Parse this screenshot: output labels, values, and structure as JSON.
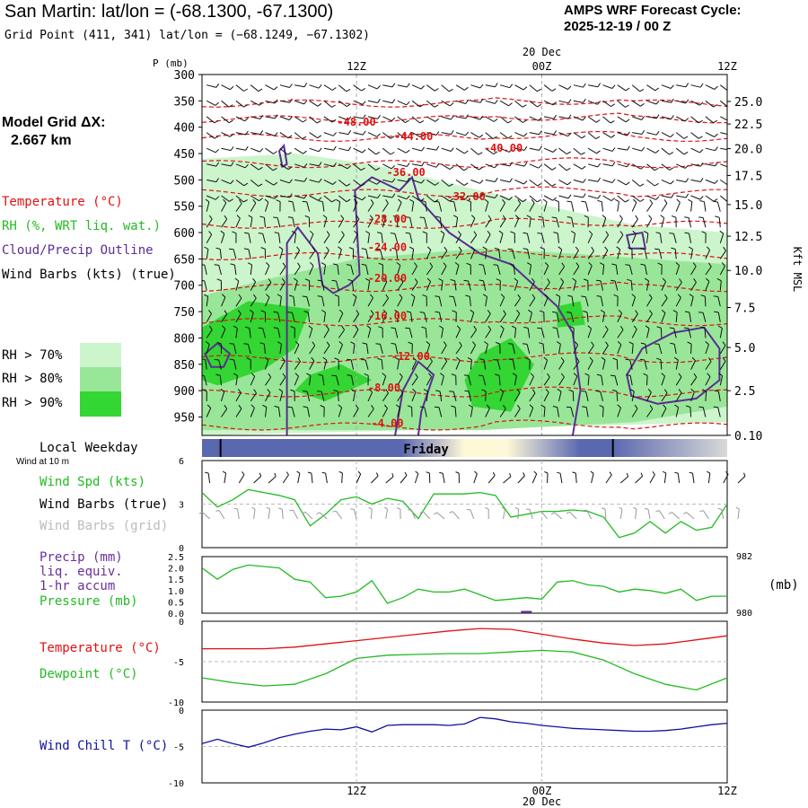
{
  "header": {
    "title": "San Martin:  lat/lon = (-68.1300, -67.1300)",
    "subtitle": "Grid Point (411, 341) lat/lon = (−68.1249, −67.1302)",
    "forecast_line1": "AMPS WRF Forecast Cycle:",
    "forecast_line2": "2025-12-19 / 00  Z"
  },
  "left_panel": {
    "model_grid_label": "Model Grid ΔX:",
    "model_grid_value": "2.667 km",
    "temperature_label": "Temperature (°C)",
    "rh_label": "RH (%, WRT liq. wat.)",
    "cloud_label": "Cloud/Precip Outline",
    "wind_barbs_label": "Wind Barbs (kts) (true)",
    "rh_legend": [
      {
        "label": "RH > 70%",
        "color": "#ccf5cc"
      },
      {
        "label": "RH > 80%",
        "color": "#99e699"
      },
      {
        "label": "RH > 90%",
        "color": "#33d633"
      }
    ],
    "local_weekday": "Local Weekday",
    "wind_at_10m": "Wind at 10 m",
    "wind_spd_label": "Wind Spd (kts)",
    "wind_barbs_true": "Wind Barbs (true)",
    "wind_barbs_grid": "Wind Barbs (grid)",
    "precip_label": "Precip (mm)",
    "liq_equiv": "liq. equiv.",
    "hr_accum": "1-hr accum",
    "pressure_label": "Pressure (mb)",
    "temp_label2": "Temperature (°C)",
    "dewpoint_label": "Dewpoint (°C)",
    "wind_chill_label": "Wind Chill T (°C)"
  },
  "colors": {
    "temperature": "#e01010",
    "rh70": "#ccf5cc",
    "rh80": "#99e699",
    "rh90": "#33d633",
    "cloud": "#5a2d91",
    "wind_spd": "#22bb22",
    "barb_grid": "#999999",
    "wind_chill": "#1010a0"
  },
  "chart_data": [
    {
      "type": "heatmap",
      "name": "cross_section",
      "y_axis_title": "P (mb)",
      "pressure_ticks": [
        300,
        350,
        400,
        450,
        500,
        550,
        600,
        650,
        700,
        750,
        800,
        850,
        900,
        950
      ],
      "ylim": [
        300,
        985
      ],
      "kft_ticks": [
        25.0,
        22.5,
        20.0,
        17.5,
        15.0,
        12.5,
        10.0,
        7.5,
        5.0,
        2.5,
        0.1
      ],
      "kft_tick_labels": [
        "25.0",
        "22.5",
        "20.0",
        "17.5",
        "15.0",
        "12.5",
        "10.0",
        "7.5",
        "5.0",
        "2.5",
        "0.10"
      ],
      "kft_axis_title": "Kft MSL",
      "top_date": "20 Dec",
      "x_tick_labels": [
        "12Z",
        "00Z",
        "12Z"
      ],
      "x_tick_hours": [
        12,
        24,
        36
      ],
      "xlim": [
        2,
        36
      ],
      "temperature_isotherms": [
        {
          "label": "-48.00",
          "values": [
            -48
          ],
          "label_hour": 12.0,
          "label_p": 390
        },
        {
          "label": "-44.00",
          "label_hour": 15.7,
          "label_p": 418
        },
        {
          "label": "-40.00",
          "label_hour": 21.5,
          "label_p": 440
        },
        {
          "label": "-36.00",
          "label_hour": 15.2,
          "label_p": 486
        },
        {
          "label": "-32.00",
          "label_hour": 19.1,
          "label_p": 532
        },
        {
          "label": "-28.00",
          "label_hour": 14.0,
          "label_p": 574
        },
        {
          "label": "-24.00",
          "label_hour": 14.0,
          "label_p": 628
        },
        {
          "label": "-20.00",
          "label_hour": 14.0,
          "label_p": 687
        },
        {
          "label": "-16.00",
          "label_hour": 14.0,
          "label_p": 758
        },
        {
          "label": "-12.00",
          "label_hour": 15.5,
          "label_p": 835
        },
        {
          "label": "-8.00",
          "label_hour": 13.8,
          "label_p": 895
        },
        {
          "label": "-4.00",
          "label_hour": 14.0,
          "label_p": 962
        }
      ],
      "isotherm_pressures": [
        355,
        385,
        420,
        470,
        525,
        585,
        645,
        705,
        770,
        840,
        905,
        968
      ],
      "rh70_region": [
        [
          2,
          460
        ],
        [
          8,
          450
        ],
        [
          13,
          470
        ],
        [
          20,
          520
        ],
        [
          26,
          560
        ],
        [
          30,
          585
        ],
        [
          36,
          600
        ],
        [
          36,
          960
        ],
        [
          2,
          985
        ]
      ],
      "rh80_region": [
        [
          2,
          720
        ],
        [
          6,
          690
        ],
        [
          12,
          650
        ],
        [
          20,
          630
        ],
        [
          26,
          640
        ],
        [
          36,
          660
        ],
        [
          36,
          930
        ],
        [
          30,
          960
        ],
        [
          20,
          975
        ],
        [
          2,
          975
        ]
      ],
      "rh90_regions": [
        [
          [
            2,
            780
          ],
          [
            5,
            730
          ],
          [
            9,
            745
          ],
          [
            8,
            820
          ],
          [
            6,
            860
          ],
          [
            3,
            890
          ],
          [
            2,
            880
          ]
        ],
        [
          [
            9,
            870
          ],
          [
            11,
            850
          ],
          [
            13,
            880
          ],
          [
            10,
            920
          ],
          [
            8,
            900
          ]
        ],
        [
          [
            20,
            830
          ],
          [
            22,
            800
          ],
          [
            23.5,
            850
          ],
          [
            22,
            940
          ],
          [
            19.5,
            930
          ],
          [
            19,
            880
          ]
        ],
        [
          [
            25,
            740
          ],
          [
            26.5,
            730
          ],
          [
            26.8,
            775
          ],
          [
            25,
            780
          ]
        ]
      ],
      "cloud_outlines": [
        [
          [
            7.5,
            985
          ],
          [
            7.5,
            620
          ],
          [
            8.2,
            590
          ],
          [
            9.5,
            640
          ],
          [
            9.8,
            700
          ],
          [
            10.5,
            715
          ],
          [
            11.5,
            700
          ],
          [
            12.2,
            680
          ],
          [
            11.9,
            520
          ],
          [
            13.0,
            495
          ],
          [
            14.8,
            520
          ],
          [
            15.6,
            495
          ],
          [
            16.0,
            535
          ],
          [
            18.0,
            600
          ],
          [
            20.0,
            640
          ],
          [
            22.0,
            660
          ],
          [
            23.5,
            700
          ],
          [
            25.0,
            740
          ],
          [
            26.0,
            790
          ],
          [
            26.5,
            900
          ],
          [
            26.0,
            985
          ]
        ],
        [
          [
            14.5,
            985
          ],
          [
            15.0,
            900
          ],
          [
            16.0,
            845
          ],
          [
            17.0,
            870
          ],
          [
            16.2,
            940
          ],
          [
            16.0,
            985
          ]
        ],
        [
          [
            29.5,
            870
          ],
          [
            30.5,
            820
          ],
          [
            32.5,
            790
          ],
          [
            34.5,
            780
          ],
          [
            35.5,
            820
          ],
          [
            35.5,
            880
          ],
          [
            34.0,
            915
          ],
          [
            31.5,
            925
          ],
          [
            29.8,
            910
          ]
        ],
        [
          [
            2.2,
            830
          ],
          [
            3.0,
            810
          ],
          [
            3.8,
            830
          ],
          [
            3.4,
            855
          ],
          [
            2.6,
            855
          ]
        ],
        [
          [
            7.0,
            445
          ],
          [
            7.3,
            435
          ],
          [
            7.5,
            470
          ],
          [
            7.2,
            475
          ]
        ],
        [
          [
            29.5,
            605
          ],
          [
            30.5,
            600
          ],
          [
            30.7,
            630
          ],
          [
            29.7,
            630
          ]
        ]
      ],
      "wind_barb_rows_mb": [
        320,
        350,
        380,
        410,
        440,
        470,
        500,
        530,
        560,
        590,
        620,
        650,
        680,
        710,
        740,
        770,
        800,
        830,
        860,
        890,
        920,
        950
      ]
    },
    {
      "type": "bar",
      "name": "weekday_bar",
      "label": "Friday",
      "night_color": "#5a68b0",
      "day_color": "#fff8d8",
      "dividers_hour": [
        3.2,
        28.6
      ]
    },
    {
      "type": "line",
      "name": "wind_speed",
      "ylim": [
        0,
        6
      ],
      "ytick_labels": [
        "0",
        "3",
        "6"
      ],
      "x": [
        2,
        3,
        4,
        5,
        6,
        7,
        8,
        9,
        10,
        11,
        12,
        13,
        14,
        15,
        16,
        17,
        18,
        19,
        20,
        21,
        22,
        23,
        24,
        25,
        26,
        27,
        28,
        29,
        30,
        31,
        32,
        33,
        34,
        35,
        36
      ],
      "values": [
        3.8,
        2.8,
        3.3,
        4.0,
        3.8,
        3.6,
        3.3,
        1.5,
        2.3,
        3.3,
        3.5,
        3.0,
        3.4,
        3.2,
        2.0,
        3.7,
        3.7,
        3.7,
        3.8,
        3.6,
        2.1,
        2.3,
        2.5,
        2.5,
        2.6,
        2.5,
        2.1,
        0.7,
        1.0,
        1.8,
        1.0,
        1.8,
        1.2,
        1.4,
        3.0
      ],
      "barb_rows": [
        {
          "kind": "true",
          "value_kts": 4.8
        },
        {
          "kind": "grid",
          "value_kts": 1.8
        }
      ]
    },
    {
      "type": "line",
      "name": "precip_pressure",
      "precip_ylim": [
        0,
        2.5
      ],
      "precip_ticks": [
        "0.0",
        "0.5",
        "1.0",
        "1.5",
        "2.0",
        "2.5"
      ],
      "pressure_ylim": [
        980,
        982
      ],
      "pressure_tick_labels": [
        "980",
        "982"
      ],
      "pressure_unit": "(mb)",
      "x": [
        2,
        3,
        4,
        5,
        6,
        7,
        8,
        9,
        10,
        11,
        12,
        13,
        14,
        15,
        16,
        17,
        18,
        19,
        20,
        21,
        22,
        23,
        24,
        25,
        26,
        27,
        28,
        29,
        30,
        31,
        32,
        33,
        34,
        35,
        36
      ],
      "pressure_values": [
        981.6,
        981.2,
        981.55,
        981.7,
        981.65,
        981.6,
        981.2,
        981.1,
        980.55,
        980.6,
        980.75,
        981.15,
        980.35,
        980.55,
        980.85,
        980.75,
        980.75,
        980.85,
        980.65,
        980.45,
        980.5,
        980.55,
        980.5,
        981.1,
        981.15,
        981.0,
        980.95,
        980.75,
        980.85,
        980.8,
        980.7,
        980.85,
        980.45,
        980.6,
        980.6
      ],
      "precip_values": [
        0,
        0,
        0,
        0,
        0,
        0,
        0,
        0,
        0,
        0,
        0,
        0,
        0,
        0,
        0,
        0,
        0,
        0,
        0,
        0,
        0,
        0.1,
        0,
        0,
        0,
        0,
        0,
        0,
        0,
        0,
        0,
        0,
        0,
        0,
        0
      ]
    },
    {
      "type": "line",
      "name": "temperature_dewpoint",
      "ylim": [
        -10,
        0
      ],
      "ytick_labels": [
        "0",
        "-5",
        "-10"
      ],
      "x": [
        2,
        4,
        6,
        8,
        10,
        12,
        14,
        16,
        18,
        20,
        22,
        24,
        26,
        28,
        30,
        32,
        34,
        36
      ],
      "temperature": [
        -3.4,
        -3.4,
        -3.4,
        -3.2,
        -2.8,
        -2.4,
        -2.0,
        -1.6,
        -1.2,
        -0.9,
        -1.0,
        -1.6,
        -2.2,
        -2.7,
        -3.0,
        -2.8,
        -2.3,
        -1.8
      ],
      "dewpoint": [
        -7.0,
        -7.6,
        -8.0,
        -7.8,
        -6.5,
        -4.6,
        -4.2,
        -4.1,
        -4.0,
        -4.0,
        -3.8,
        -3.6,
        -3.8,
        -4.8,
        -6.5,
        -7.8,
        -8.5,
        -7.0
      ]
    },
    {
      "type": "line",
      "name": "wind_chill",
      "ylim": [
        -10,
        0
      ],
      "ytick_labels": [
        "0",
        "-5",
        "-10"
      ],
      "x_tick_labels": [
        "12Z",
        "00Z",
        "12Z"
      ],
      "bottom_date": "20 Dec",
      "x": [
        2,
        3,
        4,
        5,
        6,
        7,
        8,
        9,
        10,
        11,
        12,
        13,
        14,
        15,
        16,
        17,
        18,
        19,
        20,
        21,
        22,
        23,
        24,
        25,
        26,
        27,
        28,
        29,
        30,
        31,
        32,
        33,
        34,
        35,
        36
      ],
      "values": [
        -4.6,
        -4.0,
        -4.6,
        -5.1,
        -4.5,
        -3.8,
        -3.3,
        -2.9,
        -2.6,
        -2.7,
        -2.3,
        -3.0,
        -2.1,
        -2.0,
        -2.0,
        -2.0,
        -2.1,
        -1.9,
        -1.0,
        -1.2,
        -1.6,
        -1.8,
        -2.1,
        -2.3,
        -2.5,
        -2.6,
        -2.7,
        -2.8,
        -2.9,
        -2.9,
        -2.8,
        -2.6,
        -2.3,
        -2.0,
        -1.8
      ]
    }
  ]
}
